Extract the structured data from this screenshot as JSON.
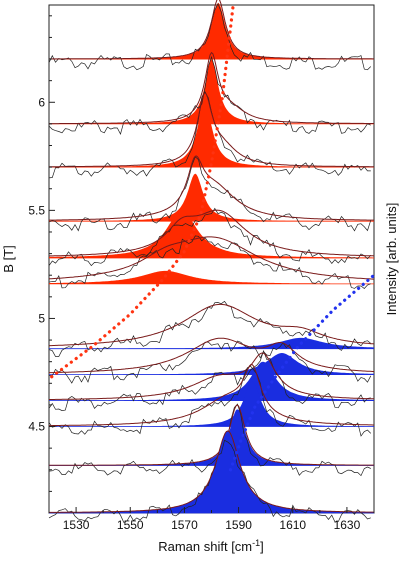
{
  "chart_data": {
    "type": "area",
    "xlabel": "Raman shift [cm",
    "xlabel_sup": "-1",
    "xlabel_end": "]",
    "ylabel_left": "B [T]",
    "ylabel_right": "Intensity [arb. units]",
    "xlim": [
      1520,
      1640
    ],
    "ylim": [
      4.1,
      6.45
    ],
    "x_ticks": [
      1530,
      1550,
      1570,
      1590,
      1610,
      1630
    ],
    "y_ticks": [
      4.5,
      5,
      5.5,
      6
    ],
    "spectra": [
      {
        "B": 6.2,
        "color": "#ff2a00",
        "peak": {
          "center": 1582.5,
          "width": 3.2,
          "height": 0.26
        },
        "fit": [
          {
            "center": 1582.5,
            "width": 3.2,
            "height": 0.28
          }
        ]
      },
      {
        "B": 5.9,
        "color": "#ff2a00",
        "peak": {
          "center": 1580,
          "width": 3.0,
          "height": 0.3
        },
        "fit": [
          {
            "center": 1580,
            "width": 3.0,
            "height": 0.3
          },
          {
            "center": 1587,
            "width": 7,
            "height": 0.06
          }
        ]
      },
      {
        "B": 5.7,
        "color": "#ff2a00",
        "peak": {
          "center": 1577.5,
          "width": 3.3,
          "height": 0.3
        },
        "fit": [
          {
            "center": 1577.5,
            "width": 3.3,
            "height": 0.3
          },
          {
            "center": 1584,
            "width": 7,
            "height": 0.08
          }
        ]
      },
      {
        "B": 5.45,
        "color": "#ff2a00",
        "peak": {
          "center": 1574,
          "width": 3.5,
          "height": 0.22
        },
        "fit": [
          {
            "center": 1574,
            "width": 3.5,
            "height": 0.2
          },
          {
            "center": 1581,
            "width": 10,
            "height": 0.15
          }
        ]
      },
      {
        "B": 5.28,
        "color": "#ff2a00",
        "peak": {
          "center": 1569,
          "width": 7,
          "height": 0.22
        },
        "fit": [
          {
            "center": 1569,
            "width": 7,
            "height": 0.1
          },
          {
            "center": 1583,
            "width": 12,
            "height": 0.2
          }
        ]
      },
      {
        "B": 5.16,
        "color": "#ff2a00",
        "peak": {
          "center": 1563,
          "width": 11,
          "height": 0.06
        },
        "fit": [
          {
            "center": 1563,
            "width": 11,
            "height": 0.06
          },
          {
            "center": 1581,
            "width": 20,
            "height": 0.2
          }
        ]
      },
      {
        "B": 4.86,
        "color": "#1a2de0",
        "peak": {
          "center": 1613,
          "width": 10,
          "height": 0.05
        },
        "fit": [
          {
            "center": 1583,
            "width": 17,
            "height": 0.2
          },
          {
            "center": 1613,
            "width": 10,
            "height": 0.05
          }
        ]
      },
      {
        "B": 4.74,
        "color": "#1a2de0",
        "peak": {
          "center": 1606,
          "width": 7,
          "height": 0.1
        },
        "fit": [
          {
            "center": 1583,
            "width": 15,
            "height": 0.16
          },
          {
            "center": 1606,
            "width": 7,
            "height": 0.1
          }
        ]
      },
      {
        "B": 4.62,
        "color": "#1a2de0",
        "peak": {
          "center": 1599,
          "width": 5.5,
          "height": 0.18
        },
        "fit": [
          {
            "center": 1583,
            "width": 13,
            "height": 0.1
          },
          {
            "center": 1599,
            "width": 5.5,
            "height": 0.18
          }
        ]
      },
      {
        "B": 4.5,
        "color": "#1a2de0",
        "peak": {
          "center": 1595,
          "width": 3.8,
          "height": 0.21
        },
        "fit": [
          {
            "center": 1586,
            "width": 12,
            "height": 0.12
          },
          {
            "center": 1595,
            "width": 3.8,
            "height": 0.21
          }
        ]
      },
      {
        "B": 4.32,
        "color": "#1a2de0",
        "peak": {
          "center": 1589.5,
          "width": 3.6,
          "height": 0.26
        },
        "fit": [
          {
            "center": 1589.5,
            "width": 3.6,
            "height": 0.28
          }
        ]
      },
      {
        "B": 4.1,
        "color": "#1a2de0",
        "peak": {
          "center": 1586,
          "width": 5.5,
          "height": 0.38
        },
        "fit": [
          {
            "center": 1586,
            "width": 5.5,
            "height": 0.38
          }
        ]
      }
    ],
    "guide_red": [
      [
        1521,
        4.73
      ],
      [
        1536,
        4.87
      ],
      [
        1550,
        5.02
      ],
      [
        1562,
        5.18
      ],
      [
        1570,
        5.31
      ],
      [
        1576,
        5.48
      ],
      [
        1580,
        5.72
      ],
      [
        1584,
        6.02
      ],
      [
        1588,
        6.45
      ]
    ],
    "guide_blue": [
      [
        1587,
        4.3
      ],
      [
        1591,
        4.44
      ],
      [
        1596,
        4.59
      ],
      [
        1603,
        4.72
      ],
      [
        1612,
        4.87
      ],
      [
        1625,
        5.04
      ],
      [
        1640,
        5.2
      ]
    ]
  }
}
